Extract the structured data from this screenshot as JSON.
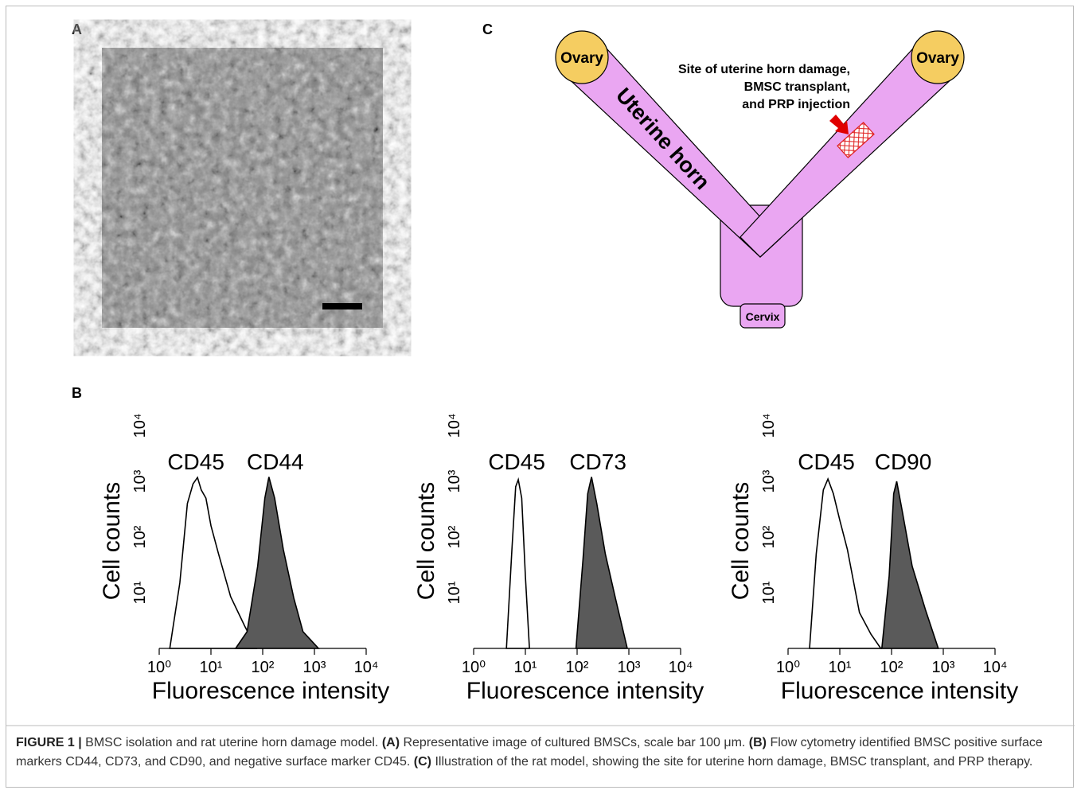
{
  "panels": {
    "a": {
      "label": "A"
    },
    "b": {
      "label": "B"
    },
    "c": {
      "label": "C",
      "ovary_left": "Ovary",
      "ovary_right": "Ovary",
      "uterine_horn": "Uterine horn",
      "site_note": [
        "Site of uterine horn damage,",
        "BMSC transplant,",
        "and PRP injection"
      ],
      "cervix": "Cervix"
    }
  },
  "chart_data": [
    {
      "type": "area",
      "xlabel": "Fluorescence intensity",
      "ylabel": "Cell counts",
      "xscale": "log",
      "yscale": "log",
      "xlim": [
        1,
        10000
      ],
      "ylim": [
        1,
        10000
      ],
      "xticks": [
        {
          "value": 1,
          "label": "10⁰"
        },
        {
          "value": 10,
          "label": "10¹"
        },
        {
          "value": 100,
          "label": "10²"
        },
        {
          "value": 1000,
          "label": "10³"
        },
        {
          "value": 10000,
          "label": "10⁴"
        }
      ],
      "yticks": [
        {
          "value": 10,
          "label": "10¹"
        },
        {
          "value": 100,
          "label": "10²"
        },
        {
          "value": 1000,
          "label": "10³"
        },
        {
          "value": 10000,
          "label": "10⁴"
        }
      ],
      "series": [
        {
          "name": "CD45",
          "color": "#ffffff",
          "x": [
            1.6,
            2.5,
            3.5,
            4.5,
            5.5,
            6.5,
            8,
            10,
            14,
            24,
            45,
            75
          ],
          "values": [
            1,
            15,
            400,
            900,
            1170,
            700,
            500,
            160,
            50,
            8.5,
            2.5,
            1
          ]
        },
        {
          "name": "CD44",
          "color": "#5a5a5a",
          "x": [
            30,
            50,
            80,
            110,
            132,
            170,
            250,
            400,
            600,
            1200
          ],
          "values": [
            1,
            2,
            30,
            500,
            1200,
            500,
            60,
            8,
            2,
            1
          ]
        }
      ]
    },
    {
      "type": "area",
      "xlabel": "Fluorescence intensity",
      "ylabel": "Cell counts",
      "xscale": "log",
      "yscale": "log",
      "xlim": [
        1,
        10000
      ],
      "ylim": [
        1,
        10000
      ],
      "xticks": [
        {
          "value": 1,
          "label": "10⁰"
        },
        {
          "value": 10,
          "label": "10¹"
        },
        {
          "value": 100,
          "label": "10²"
        },
        {
          "value": 1000,
          "label": "10³"
        },
        {
          "value": 10000,
          "label": "10⁴"
        }
      ],
      "yticks": [
        {
          "value": 10,
          "label": "10¹"
        },
        {
          "value": 100,
          "label": "10²"
        },
        {
          "value": 1000,
          "label": "10³"
        },
        {
          "value": 10000,
          "label": "10⁴"
        }
      ],
      "series": [
        {
          "name": "CD45",
          "color": "#ffffff",
          "x": [
            4.3,
            5.5,
            6.5,
            7.3,
            8.5,
            10,
            12
          ],
          "values": [
            1,
            60,
            800,
            1070,
            500,
            20,
            1
          ]
        },
        {
          "name": "CD73",
          "color": "#5a5a5a",
          "x": [
            95,
            130,
            160,
            190,
            240,
            350,
            550,
            930
          ],
          "values": [
            1,
            40,
            600,
            1200,
            400,
            50,
            8,
            1
          ]
        }
      ]
    },
    {
      "type": "area",
      "xlabel": "Fluorescence intensity",
      "ylabel": "Cell counts",
      "xscale": "log",
      "yscale": "log",
      "xlim": [
        1,
        10000
      ],
      "ylim": [
        1,
        10000
      ],
      "xticks": [
        {
          "value": 1,
          "label": "10⁰"
        },
        {
          "value": 10,
          "label": "10¹"
        },
        {
          "value": 100,
          "label": "10²"
        },
        {
          "value": 1000,
          "label": "10³"
        },
        {
          "value": 10000,
          "label": "10⁴"
        }
      ],
      "yticks": [
        {
          "value": 10,
          "label": "10¹"
        },
        {
          "value": 100,
          "label": "10²"
        },
        {
          "value": 1000,
          "label": "10³"
        },
        {
          "value": 10000,
          "label": "10⁴"
        }
      ],
      "series": [
        {
          "name": "CD45",
          "color": "#ffffff",
          "x": [
            2.6,
            3.5,
            4.8,
            5.9,
            7.5,
            10,
            14,
            24,
            40,
            62
          ],
          "values": [
            1,
            50,
            700,
            1100,
            600,
            200,
            60,
            4.4,
            1.8,
            1
          ]
        },
        {
          "name": "CD90",
          "color": "#5a5a5a",
          "x": [
            65,
            90,
            110,
            126,
            160,
            250,
            450,
            800
          ],
          "values": [
            1,
            20,
            600,
            1000,
            300,
            30,
            5,
            1
          ]
        }
      ]
    }
  ],
  "caption": [
    {
      "text": "FIGURE 1 |",
      "bold": true
    },
    {
      "text": " BMSC isolation and rat uterine horn damage model. ",
      "bold": false
    },
    {
      "text": "(A)",
      "bold": true
    },
    {
      "text": " Representative image of cultured BMSCs, scale bar 100 μm. ",
      "bold": false
    },
    {
      "text": "(B)",
      "bold": true
    },
    {
      "text": " Flow cytometry identified BMSC positive surface markers CD44, CD73, and CD90, and negative surface marker CD45. ",
      "bold": false
    },
    {
      "text": "(C)",
      "bold": true
    },
    {
      "text": " Illustration of the rat model, showing the site for uterine horn damage, BMSC transplant, and PRP therapy.",
      "bold": false
    }
  ]
}
